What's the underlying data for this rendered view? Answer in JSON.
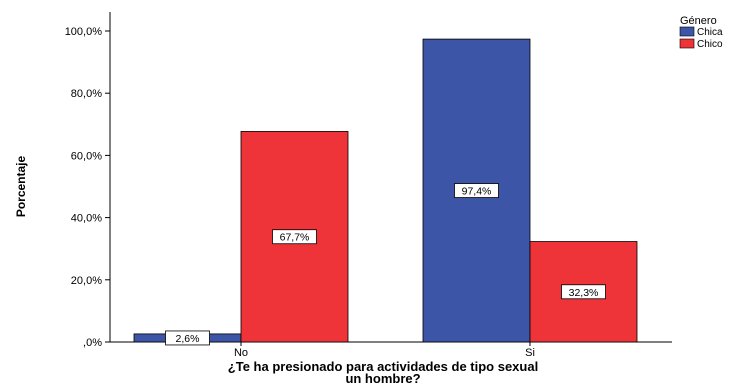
{
  "chart_data": {
    "type": "bar",
    "title": "",
    "xlabel_line1": "¿Te ha presionado para actividades de tipo sexual",
    "xlabel_line2": "un hombre?",
    "ylabel": "Porcentaje",
    "categories": [
      "No",
      "Si"
    ],
    "series": [
      {
        "name": "Chica",
        "values": [
          2.6,
          97.4
        ],
        "labels": [
          "2,6%",
          "97,4%"
        ],
        "color": "#3d55a6"
      },
      {
        "name": "Chico",
        "values": [
          67.7,
          32.3
        ],
        "labels": [
          "67,7%",
          "32,3%"
        ],
        "color": "#ee3339"
      }
    ],
    "ylim": [
      0,
      100
    ],
    "yticks": [
      0,
      20,
      40,
      60,
      80,
      100
    ],
    "ytick_labels": [
      ",0%",
      "20,0%",
      "40,0%",
      "60,0%",
      "80,0%",
      "100,0%"
    ],
    "grid": false,
    "legend_title": "Género",
    "legend_position": "top-right"
  }
}
